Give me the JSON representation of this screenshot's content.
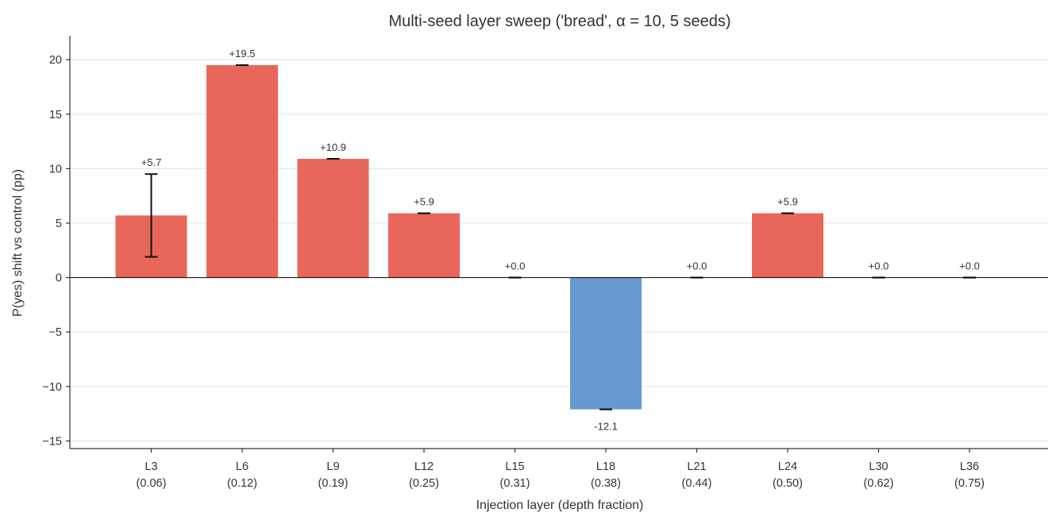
{
  "chart_data": {
    "type": "bar",
    "title": "Multi-seed layer sweep ('bread', α = 10, 5 seeds)",
    "xlabel": "Injection layer (depth fraction)",
    "ylabel": "P(yes) shift vs control (pp)",
    "ylim": [
      -15.7,
      22.2
    ],
    "yticks": [
      -15,
      -10,
      -5,
      0,
      5,
      10,
      15,
      20
    ],
    "grid": "horizontal",
    "categories": [
      {
        "layer": "L3",
        "fraction": "(0.06)"
      },
      {
        "layer": "L6",
        "fraction": "(0.12)"
      },
      {
        "layer": "L9",
        "fraction": "(0.19)"
      },
      {
        "layer": "L12",
        "fraction": "(0.25)"
      },
      {
        "layer": "L15",
        "fraction": "(0.31)"
      },
      {
        "layer": "L18",
        "fraction": "(0.38)"
      },
      {
        "layer": "L21",
        "fraction": "(0.44)"
      },
      {
        "layer": "L24",
        "fraction": "(0.50)"
      },
      {
        "layer": "L30",
        "fraction": "(0.62)"
      },
      {
        "layer": "L36",
        "fraction": "(0.75)"
      }
    ],
    "values": [
      5.7,
      19.5,
      10.9,
      5.9,
      0.0,
      -12.1,
      0.0,
      5.9,
      0.0,
      0.0
    ],
    "errors": [
      3.8,
      0.0,
      0.0,
      0.0,
      0.0,
      0.0,
      0.0,
      0.0,
      0.0,
      0.0
    ],
    "value_labels": [
      "+5.7",
      "+19.5",
      "+10.9",
      "+5.9",
      "+0.0",
      "-12.1",
      "+0.0",
      "+5.9",
      "+0.0",
      "+0.0"
    ],
    "colors": {
      "positive": "#e8675a",
      "negative": "#6699cf",
      "error_bar": "#111111"
    }
  }
}
